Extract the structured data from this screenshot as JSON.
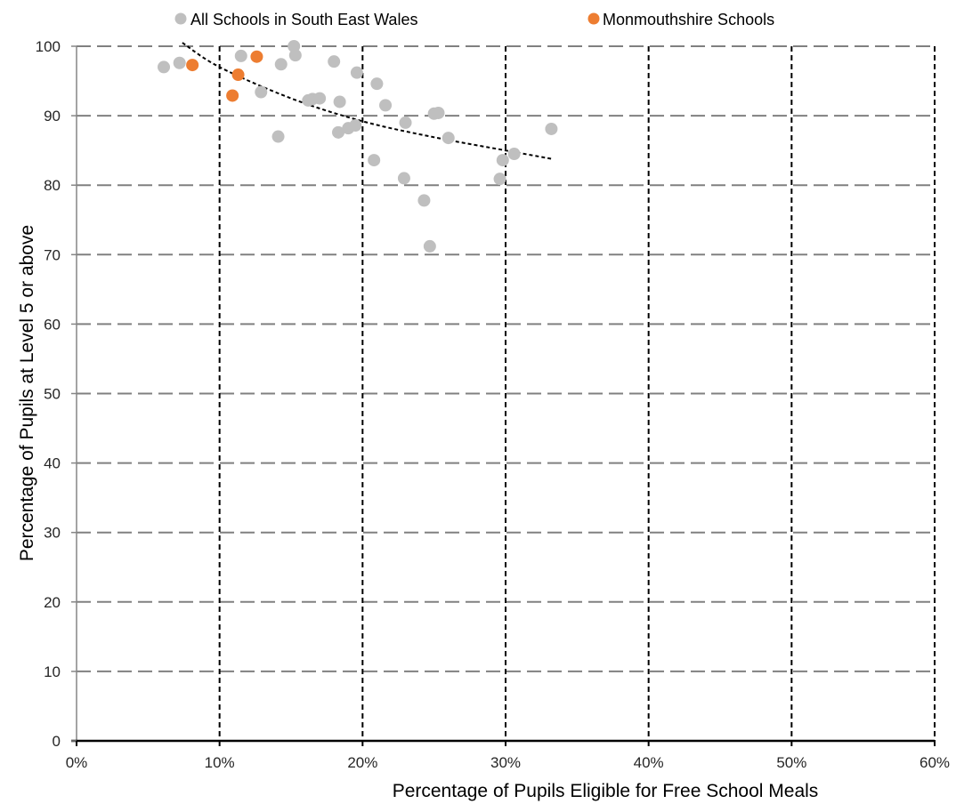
{
  "chart_data": {
    "type": "scatter",
    "title": "",
    "xlabel": "Percentage of Pupils Eligible for Free School Meals",
    "ylabel": "Percentage of Pupils at Level 5 or above",
    "xlim": [
      0,
      0.6
    ],
    "ylim": [
      0,
      100
    ],
    "x_ticks": [
      0,
      0.1,
      0.2,
      0.3,
      0.4,
      0.5,
      0.6
    ],
    "x_tick_labels": [
      "0%",
      "10%",
      "20%",
      "30%",
      "40%",
      "50%",
      "60%"
    ],
    "y_ticks": [
      0,
      10,
      20,
      30,
      40,
      50,
      60,
      70,
      80,
      90,
      100
    ],
    "y_tick_labels": [
      "0",
      "10",
      "20",
      "30",
      "40",
      "50",
      "60",
      "70",
      "80",
      "90",
      "100"
    ],
    "grid": "dashed major gridlines on both axes",
    "legend_position": "top",
    "series": [
      {
        "name": "All Schools in South East Wales",
        "color": "#bfbfbf",
        "points": [
          [
            0.061,
            97.0
          ],
          [
            0.072,
            97.6
          ],
          [
            0.115,
            98.6
          ],
          [
            0.129,
            93.4
          ],
          [
            0.141,
            87.0
          ],
          [
            0.143,
            97.4
          ],
          [
            0.152,
            100.0
          ],
          [
            0.153,
            98.7
          ],
          [
            0.162,
            92.2
          ],
          [
            0.165,
            92.4
          ],
          [
            0.17,
            92.5
          ],
          [
            0.18,
            97.8
          ],
          [
            0.183,
            87.6
          ],
          [
            0.184,
            92.0
          ],
          [
            0.19,
            88.2
          ],
          [
            0.195,
            88.6
          ],
          [
            0.196,
            96.2
          ],
          [
            0.208,
            83.6
          ],
          [
            0.21,
            94.6
          ],
          [
            0.216,
            91.5
          ],
          [
            0.229,
            81.0
          ],
          [
            0.23,
            89.0
          ],
          [
            0.243,
            77.8
          ],
          [
            0.247,
            71.2
          ],
          [
            0.25,
            90.3
          ],
          [
            0.253,
            90.4
          ],
          [
            0.26,
            86.8
          ],
          [
            0.296,
            80.9
          ],
          [
            0.298,
            83.6
          ],
          [
            0.306,
            84.5
          ],
          [
            0.332,
            88.1
          ]
        ]
      },
      {
        "name": "Monmouthshire Schools",
        "color": "#ed7d31",
        "points": [
          [
            0.081,
            97.3
          ],
          [
            0.109,
            92.9
          ],
          [
            0.113,
            95.9
          ],
          [
            0.126,
            98.5
          ]
        ]
      }
    ],
    "trendline": {
      "style": "dotted black",
      "points": [
        [
          0.074,
          100.5
        ],
        [
          0.1,
          97.0
        ],
        [
          0.15,
          92.5
        ],
        [
          0.2,
          89.2
        ],
        [
          0.25,
          86.9
        ],
        [
          0.3,
          85.0
        ],
        [
          0.332,
          83.8
        ]
      ]
    }
  }
}
